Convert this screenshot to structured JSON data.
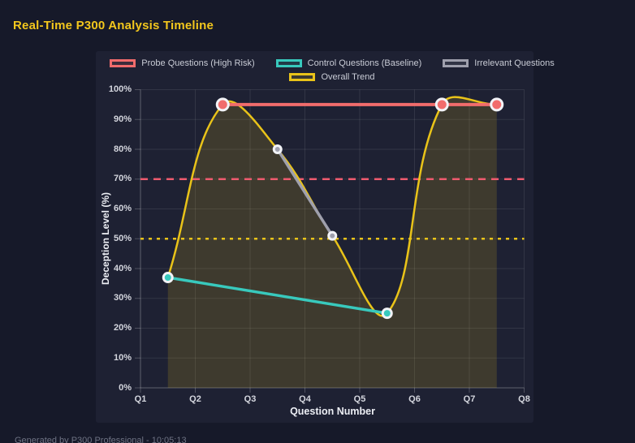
{
  "page": {
    "title": "Real-Time P300 Analysis Timeline",
    "title_color": "#f3c71d",
    "background": "#161929",
    "panel_background": "#1e2133",
    "footer": "Generated by P300 Professional - 10:05:13"
  },
  "chart_data": {
    "type": "line",
    "xlabel": "Question Number",
    "ylabel": "Deception Level (%)",
    "x_ticks": [
      "Q1",
      "Q2",
      "Q3",
      "Q4",
      "Q5",
      "Q6",
      "Q7",
      "Q8"
    ],
    "x_range": [
      1,
      8
    ],
    "y_ticks": [
      "0%",
      "10%",
      "20%",
      "30%",
      "40%",
      "50%",
      "60%",
      "70%",
      "80%",
      "90%",
      "100%"
    ],
    "ylim": [
      0,
      100
    ],
    "grid": true,
    "legend_position": "top",
    "series": [
      {
        "name": "Probe Questions (High Risk)",
        "color": "#f16c6c",
        "points": [
          [
            2.5,
            95
          ],
          [
            6.5,
            95
          ],
          [
            7.5,
            95
          ]
        ],
        "line_width": 4,
        "point_radius": 7,
        "smooth": false,
        "fill": false
      },
      {
        "name": "Control Questions (Baseline)",
        "color": "#38c9bd",
        "points": [
          [
            1.5,
            37
          ],
          [
            5.5,
            25
          ]
        ],
        "line_width": 3.5,
        "point_radius": 5.5,
        "smooth": false,
        "fill": false
      },
      {
        "name": "Irrelevant Questions",
        "color": "#9fa0ad",
        "points": [
          [
            3.5,
            80
          ],
          [
            4.5,
            51
          ]
        ],
        "line_width": 3.5,
        "point_radius": 4.5,
        "smooth": false,
        "fill": false
      },
      {
        "name": "Overall Trend",
        "color": "#e9c319",
        "points": [
          [
            1.5,
            37
          ],
          [
            2.5,
            95
          ],
          [
            3.5,
            80
          ],
          [
            4.5,
            51
          ],
          [
            5.5,
            25
          ],
          [
            6.5,
            95
          ],
          [
            7.5,
            95
          ]
        ],
        "line_width": 2.5,
        "point_radius": 0,
        "smooth": true,
        "tension": 0.4,
        "fill": true,
        "fill_color": "rgba(233,195,25,0.16)"
      }
    ],
    "thresholds": [
      {
        "value": 70,
        "color": "#ee5a6e",
        "style": "dashed",
        "width": 2.5
      },
      {
        "value": 50,
        "color": "#e9c319",
        "style": "dotted",
        "width": 2.5
      }
    ]
  }
}
